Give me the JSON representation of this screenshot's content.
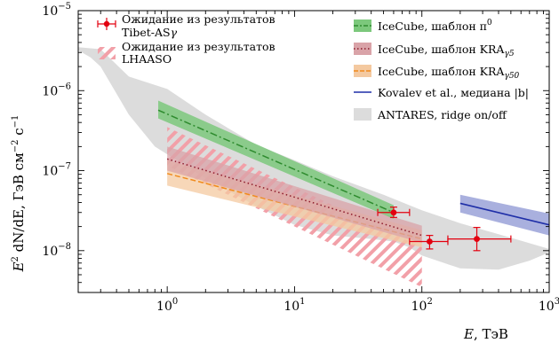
{
  "chart_data": {
    "type": "area",
    "x_scale": "log",
    "y_scale": "log",
    "xlim": [
      0.2,
      1000
    ],
    "ylim": [
      3e-09,
      1e-05
    ],
    "xlabel": {
      "base": "E",
      "unit": ", ТэВ"
    },
    "ylabel": {
      "lead": "E",
      "sup": "2",
      "mid": " dN/dE",
      "unit": ", ГэВ см",
      "sup1": "−2",
      "unit2": " с",
      "sup2": "−1"
    },
    "x_ticks": [
      {
        "value": 1,
        "base": "10",
        "exp": "0"
      },
      {
        "value": 10,
        "base": "10",
        "exp": "1"
      },
      {
        "value": 100,
        "base": "10",
        "exp": "2"
      },
      {
        "value": 1000,
        "base": "10",
        "exp": "3"
      }
    ],
    "y_ticks": [
      {
        "value": 1e-08,
        "base": "10",
        "exp": "−8"
      },
      {
        "value": 1e-07,
        "base": "10",
        "exp": "−7"
      },
      {
        "value": 1e-06,
        "base": "10",
        "exp": "−6"
      },
      {
        "value": 1e-05,
        "base": "10",
        "exp": "−5"
      }
    ],
    "legend_left": [
      {
        "text": "Ожидание из результатов",
        "text2": "Tibet-AS",
        "sub": "",
        "greek": "γ"
      },
      {
        "text": "Ожидание из результатов",
        "text2": "LHAASO"
      }
    ],
    "legend_right": [
      {
        "text": "IceCube, шаблон π",
        "sup": "0",
        "sub": ""
      },
      {
        "text": "IceCube, шаблон KRA",
        "sub": "γ5"
      },
      {
        "text": "IceCube, шаблон KRA",
        "sub": "γ50"
      },
      {
        "text": "Kovalev et al., медиана |b|",
        "sub": ""
      },
      {
        "text": "ANTARES, ridge on/off",
        "sub": ""
      }
    ],
    "colors": {
      "antares": "#dcdcdc",
      "pi0_fill": "#7cc87c",
      "pi0_line": "#2e8b2e",
      "kra5_fill": "#d9a3a8",
      "kra5_line": "#8b1a2b",
      "kra50_fill": "#f4c9a0",
      "kra50_line": "#f08a1c",
      "kovalev_fill": "#9aa2d8",
      "kovalev_line": "#1f2fa8",
      "lhaaso": "#f2a0a8",
      "tibet": "#e3000f"
    },
    "series": [
      {
        "name": "ANTARES, ridge on/off",
        "kind": "band",
        "upper": [
          [
            0.2,
            3.5e-06
          ],
          [
            0.3,
            3.3e-06
          ],
          [
            0.5,
            1.5e-06
          ],
          [
            1.0,
            1.05e-06
          ],
          [
            2.0,
            5e-07
          ],
          [
            5.0,
            2.1e-07
          ],
          [
            10,
            1.35e-07
          ],
          [
            20,
            8.5e-08
          ],
          [
            50,
            5e-08
          ],
          [
            100,
            3.2e-08
          ],
          [
            200,
            2.2e-08
          ],
          [
            500,
            1.45e-08
          ],
          [
            1000,
            1.05e-08
          ]
        ],
        "lower": [
          [
            0.2,
            3.2e-06
          ],
          [
            0.25,
            2.6e-06
          ],
          [
            0.3,
            2e-06
          ],
          [
            0.5,
            5e-07
          ],
          [
            0.8,
            2e-07
          ],
          [
            1.0,
            1.6e-07
          ],
          [
            2.0,
            8e-08
          ],
          [
            5.0,
            3.6e-08
          ],
          [
            10,
            2.1e-08
          ],
          [
            20,
            1.55e-08
          ],
          [
            40,
            1.4e-08
          ],
          [
            60,
            1.3e-08
          ],
          [
            80,
            1.1e-08
          ],
          [
            100,
            8.7e-09
          ],
          [
            200,
            6e-09
          ],
          [
            400,
            5.8e-09
          ],
          [
            700,
            7.5e-09
          ],
          [
            1000,
            9.5e-09
          ]
        ]
      },
      {
        "name": "IceCube, шаблон π0",
        "kind": "band_line",
        "x": [
          0.85,
          60
        ],
        "lower": [
          4.5e-07,
          2.5e-08
        ],
        "upper": [
          7.5e-07,
          3.7e-08
        ],
        "median": [
          5.7e-07,
          3e-08
        ]
      },
      {
        "name": "IceCube, шаблон KRAγ5",
        "kind": "band_line",
        "x": [
          1.0,
          100
        ],
        "lower": [
          1e-07,
          1.25e-08
        ],
        "upper": [
          2e-07,
          2.05e-08
        ],
        "median": [
          1.4e-07,
          1.55e-08
        ]
      },
      {
        "name": "IceCube, шаблон KRAγ50",
        "kind": "band_line",
        "x": [
          1.0,
          100
        ],
        "lower": [
          6.5e-08,
          1.1e-08
        ],
        "upper": [
          1.35e-07,
          1.8e-08
        ],
        "median": [
          9.2e-08,
          1.4e-08
        ]
      },
      {
        "name": "Kovalev et al., медиана |b|",
        "kind": "band_line",
        "x": [
          200,
          1000
        ],
        "lower": [
          3e-08,
          1.55e-08
        ],
        "upper": [
          5e-08,
          2.9e-08
        ],
        "median": [
          3.9e-08,
          2.1e-08
        ]
      },
      {
        "name": "Ожидание из результатов LHAASO",
        "kind": "hatch",
        "x": [
          1.0,
          100
        ],
        "lower": [
          1.15e-07,
          3.5e-09
        ],
        "upper": [
          3.5e-07,
          1.1e-08
        ]
      },
      {
        "name": "Ожидание из результатов Tibet-ASγ",
        "kind": "errorbars",
        "points": [
          {
            "x": 60,
            "y": 3e-08,
            "x_lo": 45,
            "x_hi": 80,
            "y_lo": 2.6e-08,
            "y_hi": 3.5e-08
          },
          {
            "x": 115,
            "y": 1.3e-08,
            "x_lo": 80,
            "x_hi": 160,
            "y_lo": 1.05e-08,
            "y_hi": 1.55e-08
          },
          {
            "x": 270,
            "y": 1.4e-08,
            "x_lo": 160,
            "x_hi": 500,
            "y_lo": 1e-08,
            "y_hi": 1.95e-08
          }
        ]
      }
    ]
  }
}
